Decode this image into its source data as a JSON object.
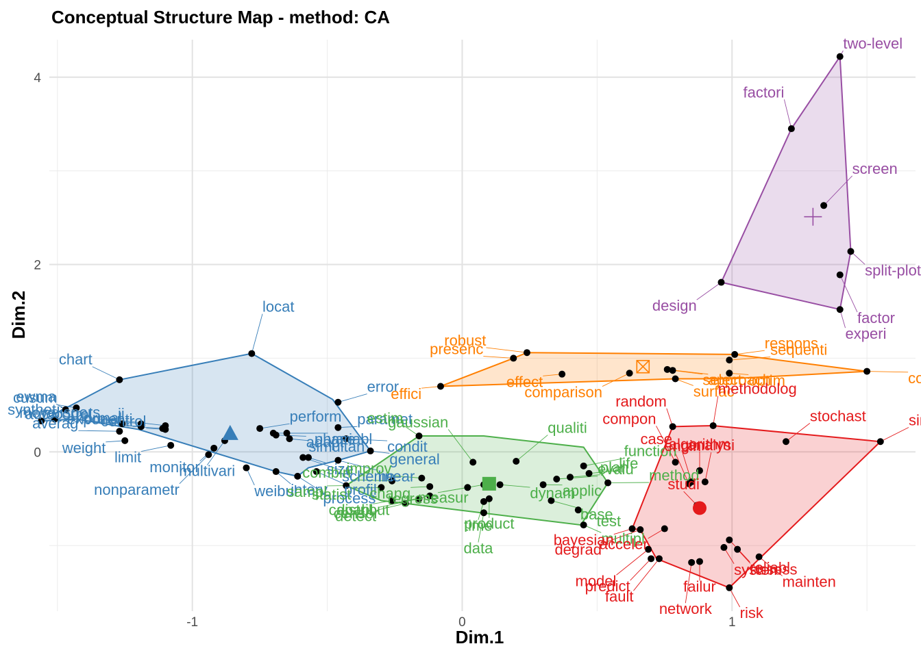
{
  "chart_data": {
    "type": "scatter",
    "title": "Conceptual Structure Map - method: CA",
    "xlabel": "Dim.1",
    "ylabel": "Dim.2",
    "xlim": [
      -1.53,
      1.68
    ],
    "ylim": [
      -1.7,
      4.4
    ],
    "x_ticks": [
      -1,
      0,
      1
    ],
    "y_ticks": [
      0,
      2,
      4
    ],
    "grid": true,
    "legend": "none",
    "clusters": [
      {
        "color": "#377EB8",
        "centroid": [
          -0.86,
          0.2
        ],
        "marker": "triangle",
        "hull": [
          [
            -1.56,
            0.33
          ],
          [
            -1.27,
            0.77
          ],
          [
            -0.78,
            1.05
          ],
          [
            -0.48,
            0.56
          ],
          [
            -0.34,
            0.01
          ],
          [
            -0.46,
            -0.09
          ],
          [
            -0.57,
            -0.17
          ],
          [
            -0.61,
            -0.26
          ],
          [
            -0.69,
            -0.21
          ],
          [
            -1.2,
            0.24
          ],
          [
            -1.43,
            0.35
          ]
        ],
        "points": [
          {
            "label": "move",
            "x": -1.56,
            "y": 0.33
          },
          {
            "label": "synthet",
            "x": -1.51,
            "y": 0.35
          },
          {
            "label": "ewma",
            "x": -1.47,
            "y": 0.45
          },
          {
            "label": "cusum",
            "x": -1.43,
            "y": 0.47
          },
          {
            "label": "chart",
            "x": -1.27,
            "y": 0.77
          },
          {
            "label": "averag",
            "x": -1.27,
            "y": 0.22
          },
          {
            "label": "weight",
            "x": -1.25,
            "y": 0.12
          },
          {
            "label": "autocorrel",
            "x": -1.26,
            "y": 0.3
          },
          {
            "label": "dispers",
            "x": -1.19,
            "y": 0.3
          },
          {
            "label": "normal",
            "x": -1.19,
            "y": 0.27
          },
          {
            "label": "exponenti",
            "x": -1.11,
            "y": 0.25
          },
          {
            "label": "ii",
            "x": -1.1,
            "y": 0.28
          },
          {
            "label": "control",
            "x": -1.1,
            "y": 0.24
          },
          {
            "label": "limit",
            "x": -1.08,
            "y": 0.07
          },
          {
            "label": "nonparametr",
            "x": -0.94,
            "y": -0.03
          },
          {
            "label": "monitor",
            "x": -0.92,
            "y": 0.04
          },
          {
            "label": "multivari",
            "x": -0.88,
            "y": 0.12
          },
          {
            "label": "locat",
            "x": -0.78,
            "y": 1.05
          },
          {
            "label": "weibul",
            "x": -0.8,
            "y": -0.17
          },
          {
            "label": "perform",
            "x": -0.75,
            "y": 0.25
          },
          {
            "label": "phase",
            "x": -0.7,
            "y": 0.2
          },
          {
            "label": "interv",
            "x": -0.69,
            "y": -0.21
          },
          {
            "label": "adapt",
            "x": -0.69,
            "y": 0.18
          },
          {
            "label": "variabl",
            "x": -0.65,
            "y": 0.2
          },
          {
            "label": "simultan",
            "x": -0.64,
            "y": 0.14
          },
          {
            "label": "process",
            "x": -0.61,
            "y": -0.26
          },
          {
            "label": "scheme",
            "x": -0.59,
            "y": -0.06
          },
          {
            "label": "size",
            "x": -0.57,
            "y": -0.06
          },
          {
            "label": "profil",
            "x": -0.54,
            "y": -0.21
          },
          {
            "label": "linear",
            "x": -0.46,
            "y": -0.09
          },
          {
            "label": "paramet",
            "x": -0.46,
            "y": 0.26
          },
          {
            "label": "error",
            "x": -0.46,
            "y": 0.53
          },
          {
            "label": "condit",
            "x": -0.43,
            "y": 0.14
          },
          {
            "label": "general",
            "x": -0.34,
            "y": 0.01
          }
        ]
      },
      {
        "color": "#4DAF4A",
        "centroid": [
          0.1,
          -0.34
        ],
        "marker": "square",
        "hull": [
          [
            -0.43,
            -0.36
          ],
          [
            -0.16,
            0.17
          ],
          [
            0.08,
            0.17
          ],
          [
            0.45,
            0.05
          ],
          [
            0.54,
            -0.33
          ],
          [
            0.44,
            -0.78
          ],
          [
            0.07,
            -0.65
          ],
          [
            -0.21,
            -0.55
          ],
          [
            -0.3,
            -0.52
          ]
        ],
        "points": [
          {
            "label": "sampl",
            "x": -0.43,
            "y": -0.36
          },
          {
            "label": "statist",
            "x": -0.3,
            "y": -0.38
          },
          {
            "label": "combin",
            "x": -0.26,
            "y": -0.31
          },
          {
            "label": "capabl",
            "x": -0.26,
            "y": -0.52
          },
          {
            "label": "detect",
            "x": -0.21,
            "y": -0.55
          },
          {
            "label": "censor",
            "x": -0.16,
            "y": -0.5
          },
          {
            "label": "estim",
            "x": -0.16,
            "y": 0.17
          },
          {
            "label": "improv",
            "x": -0.15,
            "y": -0.28
          },
          {
            "label": "distribut",
            "x": -0.12,
            "y": -0.47
          },
          {
            "label": "chang",
            "x": -0.12,
            "y": -0.37
          },
          {
            "label": "regress",
            "x": 0.02,
            "y": -0.38
          },
          {
            "label": "gaussian",
            "x": 0.04,
            "y": -0.11
          },
          {
            "label": "time",
            "x": 0.08,
            "y": -0.53
          },
          {
            "label": "data",
            "x": 0.08,
            "y": -0.65
          },
          {
            "label": "measur",
            "x": 0.08,
            "y": -0.35
          },
          {
            "label": "product",
            "x": 0.1,
            "y": -0.5
          },
          {
            "label": "dynam",
            "x": 0.14,
            "y": -0.35
          },
          {
            "label": "qualiti",
            "x": 0.2,
            "y": -0.1
          },
          {
            "label": "applic",
            "x": 0.3,
            "y": -0.35
          },
          {
            "label": "base",
            "x": 0.33,
            "y": -0.52
          },
          {
            "label": "evalu",
            "x": 0.35,
            "y": -0.29
          },
          {
            "label": "test",
            "x": 0.43,
            "y": -0.62
          },
          {
            "label": "plan",
            "x": 0.4,
            "y": -0.27
          },
          {
            "label": "function",
            "x": 0.45,
            "y": -0.15
          },
          {
            "label": "multipl",
            "x": 0.45,
            "y": -0.78
          },
          {
            "label": "life",
            "x": 0.47,
            "y": -0.23
          },
          {
            "label": "method",
            "x": 0.54,
            "y": -0.33
          }
        ]
      },
      {
        "color": "#FF7F00",
        "centroid": [
          0.67,
          0.91
        ],
        "marker": "boxed-cross",
        "hull": [
          [
            -0.08,
            0.7
          ],
          [
            0.19,
            1.0
          ],
          [
            0.24,
            1.06
          ],
          [
            1.01,
            1.04
          ],
          [
            1.5,
            0.86
          ],
          [
            0.99,
            0.78
          ],
          [
            0.79,
            0.78
          ]
        ],
        "points": [
          {
            "label": "effici",
            "x": -0.08,
            "y": 0.7
          },
          {
            "label": "presenc",
            "x": 0.19,
            "y": 1.0
          },
          {
            "label": "robust",
            "x": 0.24,
            "y": 1.06
          },
          {
            "label": "effect",
            "x": 0.37,
            "y": 0.83
          },
          {
            "label": "comparison",
            "x": 0.62,
            "y": 0.84
          },
          {
            "label": "approach",
            "x": 0.76,
            "y": 0.88
          },
          {
            "label": "surfac",
            "x": 0.79,
            "y": 0.78
          },
          {
            "label": "select",
            "x": 0.78,
            "y": 0.87
          },
          {
            "label": "sequenti",
            "x": 0.99,
            "y": 0.98
          },
          {
            "label": "optim",
            "x": 0.99,
            "y": 0.84
          },
          {
            "label": "respons",
            "x": 1.01,
            "y": 1.04
          },
          {
            "label": "comput",
            "x": 1.5,
            "y": 0.86
          }
        ]
      },
      {
        "color": "#E41A1C",
        "centroid": [
          0.88,
          -0.6
        ],
        "marker": "circle",
        "hull": [
          [
            0.78,
            0.27
          ],
          [
            0.93,
            0.28
          ],
          [
            1.55,
            0.11
          ],
          [
            0.99,
            -1.45
          ],
          [
            0.72,
            -1.14
          ],
          [
            0.66,
            -0.83
          ],
          [
            0.63,
            -0.82
          ]
        ],
        "points": [
          {
            "label": "random",
            "x": 0.78,
            "y": 0.27
          },
          {
            "label": "methodolog",
            "x": 0.93,
            "y": 0.28
          },
          {
            "label": "compon",
            "x": 0.79,
            "y": -0.11
          },
          {
            "label": "algorithm",
            "x": 0.88,
            "y": -0.2
          },
          {
            "label": "engin",
            "x": 0.85,
            "y": -0.32
          },
          {
            "label": "case",
            "x": 0.84,
            "y": -0.34
          },
          {
            "label": "studi",
            "x": 0.87,
            "y": -0.57
          },
          {
            "label": "stochast",
            "x": 1.2,
            "y": 0.11
          },
          {
            "label": "simul",
            "x": 1.55,
            "y": 0.11
          },
          {
            "label": "bayesian",
            "x": 0.63,
            "y": -0.82
          },
          {
            "label": "analysi",
            "x": 0.9,
            "y": -0.32
          },
          {
            "label": "model",
            "x": 0.69,
            "y": -1.04
          },
          {
            "label": "acceler",
            "x": 0.75,
            "y": -0.82
          },
          {
            "label": "reliabl",
            "x": 0.99,
            "y": -0.94
          },
          {
            "label": "degrad",
            "x": 0.66,
            "y": -0.83
          },
          {
            "label": "system",
            "x": 0.97,
            "y": -1.02
          },
          {
            "label": "predict",
            "x": 0.7,
            "y": -1.14
          },
          {
            "label": "network",
            "x": 0.85,
            "y": -1.18
          },
          {
            "label": "assess",
            "x": 1.02,
            "y": -1.04
          },
          {
            "label": "mainten",
            "x": 1.1,
            "y": -1.12
          },
          {
            "label": "fault",
            "x": 0.73,
            "y": -1.14
          },
          {
            "label": "failur",
            "x": 0.88,
            "y": -1.17
          },
          {
            "label": "risk",
            "x": 0.99,
            "y": -1.45
          }
        ]
      },
      {
        "color": "#984EA3",
        "centroid": [
          1.3,
          2.51
        ],
        "marker": "plus",
        "hull": [
          [
            0.96,
            1.81
          ],
          [
            1.22,
            3.45
          ],
          [
            1.4,
            4.22
          ],
          [
            1.44,
            2.14
          ],
          [
            1.4,
            1.52
          ]
        ],
        "points": [
          {
            "label": "two-level",
            "x": 1.4,
            "y": 4.22
          },
          {
            "label": "factori",
            "x": 1.22,
            "y": 3.45
          },
          {
            "label": "screen",
            "x": 1.34,
            "y": 2.63
          },
          {
            "label": "split-plot",
            "x": 1.44,
            "y": 2.14
          },
          {
            "label": "design",
            "x": 0.96,
            "y": 1.81
          },
          {
            "label": "factor",
            "x": 1.4,
            "y": 1.89
          },
          {
            "label": "experi",
            "x": 1.4,
            "y": 1.52
          }
        ]
      }
    ]
  }
}
